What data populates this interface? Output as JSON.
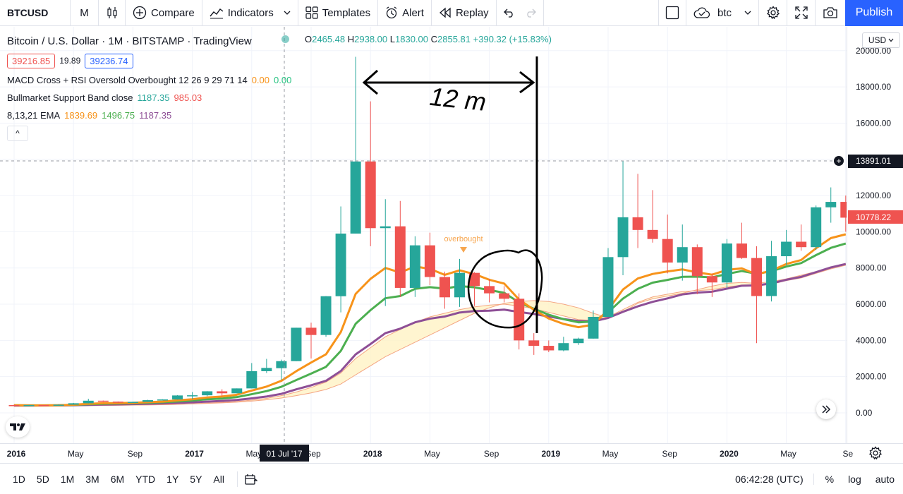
{
  "toolbar": {
    "symbol": "BTCUSD",
    "interval": "M",
    "compare": "Compare",
    "indicators": "Indicators",
    "templates": "Templates",
    "alert": "Alert",
    "replay": "Replay",
    "layout_name": "btc",
    "publish": "Publish"
  },
  "legend": {
    "title": "Bitcoin / U.S. Dollar · 1M · BITSTAMP · TradingView",
    "ohlc": {
      "o_label": "O",
      "o": "2465.48",
      "h_label": "H",
      "h": "2938.00",
      "l_label": "L",
      "l": "1830.00",
      "c_label": "C",
      "c": "2855.81",
      "change": "+390.32 (+15.83%)"
    },
    "bid": "39216.85",
    "spread": "19.89",
    "ask": "39236.74",
    "indicators": [
      {
        "name": "MACD Cross + RSI Oversold Overbought 12 26 9 29 71 14",
        "v1": "0.00",
        "v2": "0.00"
      },
      {
        "name": "Bullmarket Support Band close",
        "v1": "1187.35",
        "v2": "985.03"
      },
      {
        "name": "8,13,21 EMA",
        "v1": "1839.69",
        "v2": "1496.75",
        "v3": "1187.35"
      }
    ],
    "collapse": "^"
  },
  "price_scale": {
    "currency": "USD",
    "ticks": [
      "20000.00",
      "18000.00",
      "16000.00",
      "12000.00",
      "10000.00",
      "8000.00",
      "6000.00",
      "4000.00",
      "2000.00",
      "0.00"
    ],
    "crosshair_label": "13891.01",
    "last_price_label": "10778.22"
  },
  "time_scale": {
    "ticks": [
      "2016",
      "May",
      "Sep",
      "2017",
      "May",
      "Sep",
      "2018",
      "May",
      "Sep",
      "2019",
      "May",
      "Sep",
      "2020",
      "May",
      "Se"
    ],
    "crosshair_label": "01 Jul '17"
  },
  "annotations": {
    "overbought": "overbought",
    "measure_text": "12 m"
  },
  "bottom": {
    "ranges": [
      "1D",
      "5D",
      "1M",
      "3M",
      "6M",
      "YTD",
      "1Y",
      "5Y",
      "All"
    ],
    "clock": "06:42:28 (UTC)",
    "percent": "%",
    "log": "log",
    "auto": "auto"
  },
  "colors": {
    "up": "#26a69a",
    "down": "#ef5350",
    "ema8": "#f7931a",
    "ema13": "#4caf50",
    "ema21": "#8e4f96",
    "band": "#fff3c4",
    "accent": "#2962ff"
  },
  "chart_data": {
    "type": "candlestick",
    "title": "Bitcoin / U.S. Dollar · 1M · BITSTAMP",
    "ylim": [
      0,
      20500
    ],
    "x": [
      "2016-01",
      "2016-02",
      "2016-03",
      "2016-04",
      "2016-05",
      "2016-06",
      "2016-07",
      "2016-08",
      "2016-09",
      "2016-10",
      "2016-11",
      "2016-12",
      "2017-01",
      "2017-02",
      "2017-03",
      "2017-04",
      "2017-05",
      "2017-06",
      "2017-07",
      "2017-08",
      "2017-09",
      "2017-10",
      "2017-11",
      "2017-12",
      "2018-01",
      "2018-02",
      "2018-03",
      "2018-04",
      "2018-05",
      "2018-06",
      "2018-07",
      "2018-08",
      "2018-09",
      "2018-10",
      "2018-11",
      "2018-12",
      "2019-01",
      "2019-02",
      "2019-03",
      "2019-04",
      "2019-05",
      "2019-06",
      "2019-07",
      "2019-08",
      "2019-09",
      "2019-10",
      "2019-11",
      "2019-12",
      "2020-01",
      "2020-02",
      "2020-03",
      "2020-04",
      "2020-05",
      "2020-06",
      "2020-07",
      "2020-08",
      "2020-09"
    ],
    "ohlc": [
      [
        430,
        460,
        360,
        370
      ],
      [
        370,
        440,
        365,
        435
      ],
      [
        435,
        440,
        400,
        415
      ],
      [
        415,
        465,
        410,
        450
      ],
      [
        450,
        550,
        440,
        530
      ],
      [
        530,
        780,
        520,
        670
      ],
      [
        670,
        680,
        600,
        620
      ],
      [
        620,
        630,
        540,
        575
      ],
      [
        575,
        620,
        570,
        605
      ],
      [
        605,
        720,
        600,
        700
      ],
      [
        700,
        750,
        690,
        740
      ],
      [
        740,
        980,
        730,
        960
      ],
      [
        960,
        1150,
        750,
        970
      ],
      [
        970,
        1200,
        920,
        1190
      ],
      [
        1190,
        1300,
        900,
        1080
      ],
      [
        1080,
        1350,
        1080,
        1350
      ],
      [
        1350,
        2750,
        1350,
        2300
      ],
      [
        2300,
        2980,
        2200,
        2480
      ],
      [
        2465,
        2938,
        1830,
        2855
      ],
      [
        2855,
        4700,
        2850,
        4700
      ],
      [
        4700,
        4980,
        3000,
        4300
      ],
      [
        4300,
        6450,
        4200,
        6440
      ],
      [
        6440,
        11400,
        5550,
        9900
      ],
      [
        9900,
        19660,
        9900,
        13880
      ],
      [
        13880,
        17200,
        9200,
        10200
      ],
      [
        10200,
        11800,
        5900,
        10300
      ],
      [
        10300,
        11700,
        6400,
        6900
      ],
      [
        6900,
        9750,
        6400,
        9250
      ],
      [
        9250,
        9950,
        7050,
        7500
      ],
      [
        7500,
        7800,
        5750,
        6380
      ],
      [
        6380,
        8500,
        5850,
        7730
      ],
      [
        7730,
        7770,
        5900,
        7000
      ],
      [
        7000,
        7400,
        6100,
        6600
      ],
      [
        6600,
        7000,
        6100,
        6300
      ],
      [
        6300,
        6600,
        3500,
        4000
      ],
      [
        4000,
        4400,
        3200,
        3700
      ],
      [
        3700,
        4000,
        3350,
        3450
      ],
      [
        3450,
        4200,
        3400,
        3850
      ],
      [
        3850,
        4150,
        3750,
        4100
      ],
      [
        4100,
        5650,
        4100,
        5300
      ],
      [
        5300,
        9100,
        5300,
        8600
      ],
      [
        8600,
        13900,
        7600,
        10800
      ],
      [
        10800,
        13200,
        9100,
        10100
      ],
      [
        10100,
        12300,
        9400,
        9600
      ],
      [
        9600,
        10950,
        7700,
        8300
      ],
      [
        8300,
        10400,
        7300,
        9150
      ],
      [
        9150,
        9300,
        6550,
        7550
      ],
      [
        7550,
        7700,
        6400,
        7200
      ],
      [
        7200,
        9600,
        6900,
        9350
      ],
      [
        9350,
        10500,
        8500,
        8550
      ],
      [
        8550,
        9200,
        3850,
        6450
      ],
      [
        6450,
        9500,
        6150,
        8650
      ],
      [
        8650,
        10100,
        8150,
        9450
      ],
      [
        9450,
        10400,
        8950,
        9150
      ],
      [
        9150,
        11450,
        9000,
        11350
      ],
      [
        11350,
        12450,
        10500,
        11650
      ],
      [
        11650,
        12000,
        10000,
        10778
      ]
    ],
    "series": [
      {
        "name": "8,13,21 EMA (8)",
        "values": [
          420,
          410,
          410,
          420,
          450,
          500,
          530,
          540,
          555,
          590,
          620,
          690,
          750,
          850,
          900,
          1000,
          1230,
          1450,
          1770,
          2300,
          2780,
          3230,
          4460,
          6570,
          7400,
          8000,
          7750,
          8080,
          7950,
          7620,
          7870,
          7660,
          7350,
          7140,
          6260,
          5690,
          5210,
          4910,
          4730,
          4870,
          5690,
          6810,
          7420,
          7670,
          7810,
          7920,
          7760,
          7630,
          7890,
          7980,
          7640,
          7860,
          8220,
          8440,
          9090,
          9650,
          9860
        ]
      },
      {
        "name": "8,13,21 EMA (13)",
        "values": [
          420,
          415,
          415,
          420,
          440,
          475,
          500,
          515,
          530,
          560,
          585,
          630,
          680,
          750,
          790,
          870,
          1030,
          1200,
          1440,
          1810,
          2170,
          2540,
          3420,
          4920,
          5670,
          6330,
          6450,
          6850,
          6940,
          6860,
          7000,
          6930,
          6780,
          6630,
          6100,
          5750,
          5420,
          5170,
          5000,
          5040,
          5550,
          6310,
          6850,
          7190,
          7340,
          7510,
          7520,
          7480,
          7670,
          7830,
          7680,
          7820,
          8080,
          8270,
          8710,
          9110,
          9350
        ]
      },
      {
        "name": "8,13,21 EMA (21)",
        "values": [
          400,
          400,
          405,
          410,
          420,
          440,
          460,
          470,
          480,
          500,
          520,
          550,
          580,
          620,
          660,
          710,
          800,
          900,
          1050,
          1300,
          1520,
          1770,
          2310,
          3230,
          3800,
          4400,
          4650,
          5000,
          5200,
          5320,
          5540,
          5620,
          5640,
          5700,
          5570,
          5460,
          5320,
          5180,
          5070,
          5050,
          5240,
          5580,
          5880,
          6130,
          6320,
          6540,
          6640,
          6690,
          6860,
          7020,
          7040,
          7150,
          7350,
          7510,
          7770,
          8030,
          8220
        ]
      },
      {
        "name": "Bullmarket Support Band (SMA)",
        "values": [
          380,
          380,
          385,
          390,
          395,
          400,
          410,
          420,
          430,
          440,
          455,
          470,
          490,
          520,
          550,
          590,
          650,
          720,
          820,
          950,
          1100,
          1290,
          1590,
          2100,
          2600,
          3100,
          3500,
          3900,
          4300,
          4700,
          5100,
          5500,
          5800,
          6050,
          6150,
          6200,
          6150,
          6000,
          5800,
          5500,
          5250,
          5550,
          6050,
          6300,
          6450,
          6600,
          6800,
          7000,
          7150,
          7200,
          7150,
          7250,
          7400,
          7600,
          7800,
          8000,
          8250
        ]
      },
      {
        "name": "Bullmarket Support Band (EMA)",
        "values": [
          370,
          370,
          375,
          380,
          390,
          400,
          410,
          420,
          430,
          440,
          450,
          470,
          500,
          540,
          580,
          630,
          700,
          800,
          950,
          1150,
          1400,
          1700,
          2200,
          3000,
          3600,
          4200,
          4600,
          5000,
          5300,
          5500,
          5700,
          5850,
          5950,
          6000,
          5900,
          5750,
          5550,
          5350,
          5150,
          5100,
          5300,
          5700,
          6100,
          6400,
          6550,
          6700,
          6750,
          6800,
          6950,
          7050,
          7000,
          7100,
          7300,
          7450,
          7700,
          7950,
          8150
        ]
      }
    ]
  }
}
